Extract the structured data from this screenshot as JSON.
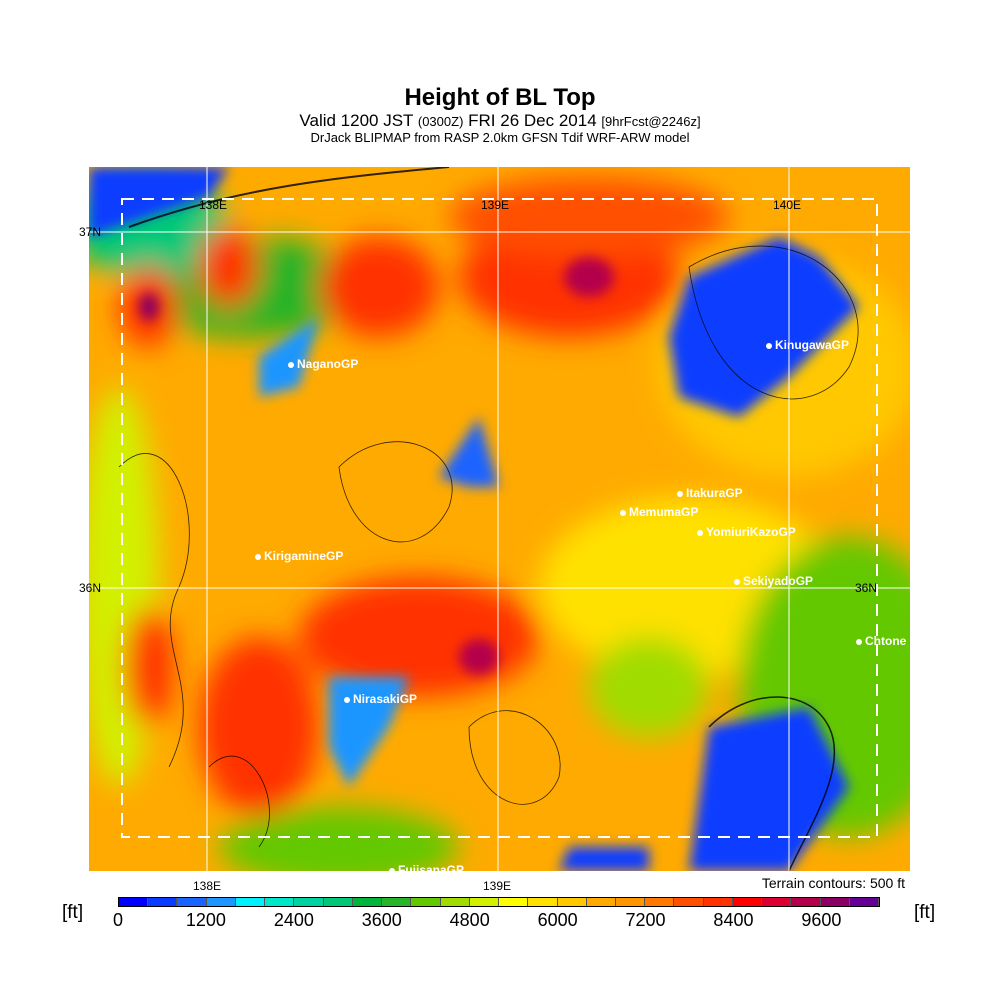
{
  "title": "Height of BL Top",
  "subtitle": {
    "valid": "Valid 1200 JST",
    "utc": "(0300Z)",
    "date": "FRI 26 Dec 2014",
    "fcst": "[9hrFcst@2246z]"
  },
  "model_line": "DrJack BLIPMAP from RASP 2.0km GFSN Tdif WRF-ARW model",
  "grid_labels": {
    "lon_138": "138E",
    "lon_139": "139E",
    "lon_140": "140E",
    "lat_37": "37N",
    "lat_36": "36N",
    "lat_36_right": "36N"
  },
  "bottom_axis": {
    "lon_138": "138E",
    "lon_139": "139E"
  },
  "sites": [
    "NaganoGP",
    "KinugawaGP",
    "ItakuraGP",
    "MemumaGP",
    "YomiuriKazoGP",
    "KirigamineGP",
    "SekiyadoGP",
    "Chtone",
    "NirasakiGP",
    "FujisanaGP"
  ],
  "terrain_note": "Terrain contours: 500 ft",
  "colorbar": {
    "unit": "[ft]",
    "ticks": [
      "0",
      "1200",
      "2400",
      "3600",
      "4800",
      "6000",
      "7200",
      "8400",
      "9600"
    ],
    "step_ft": 400,
    "colors": [
      "#0000ff",
      "#0a3cff",
      "#1a64ff",
      "#1e96ff",
      "#00f0ff",
      "#00e6c8",
      "#00d2a0",
      "#00c878",
      "#00b43c",
      "#28b428",
      "#64c800",
      "#a0dc00",
      "#d2f000",
      "#ffff00",
      "#ffe100",
      "#ffc800",
      "#ffaa00",
      "#ff9600",
      "#ff7800",
      "#ff5000",
      "#ff3200",
      "#ff0000",
      "#dc0032",
      "#b4004b",
      "#8c0064",
      "#640096"
    ]
  }
}
